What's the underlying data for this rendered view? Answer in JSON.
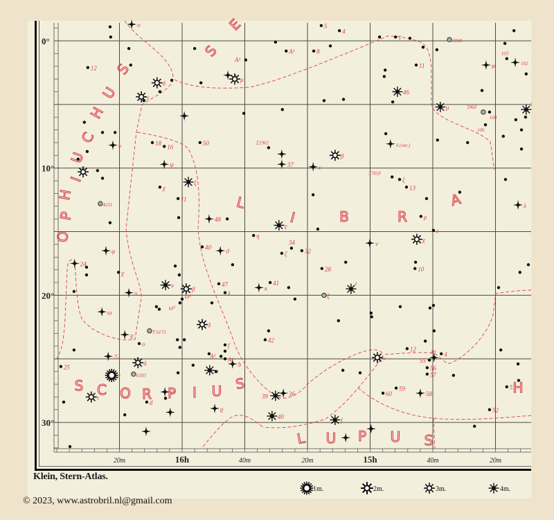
{
  "atlas_credit": "Klein, Stern-Atlas.",
  "copyright": "© 2023, www.astrobril.nl@gmail.com",
  "colors": {
    "ink": "#1a1a1a",
    "red": "#d8404c",
    "paper": "#f3efdd",
    "background": "#efe3cc",
    "grid": "#4a4a44"
  },
  "dec_labels": [
    "0°",
    "10°",
    "20°",
    "30°"
  ],
  "ra_labels": [
    "20m",
    "16h",
    "40m",
    "20m",
    "15h",
    "40m",
    "20m"
  ],
  "legend": [
    {
      "symbol": "m1",
      "label": "1m."
    },
    {
      "symbol": "m2",
      "label": "2m."
    },
    {
      "symbol": "m3",
      "label": "3m."
    },
    {
      "symbol": "m4",
      "label": "4m."
    }
  ],
  "constellations": [
    {
      "name": "OPHIUCHUS"
    },
    {
      "name": "SE"
    },
    {
      "name": "LIBRA"
    },
    {
      "name": "SCORPIUS"
    },
    {
      "name": "LUPUS"
    },
    {
      "name": "H"
    }
  ],
  "stars_note_fields": [
    "ra_minutes",
    "dec_south_deg",
    "type",
    "label"
  ],
  "stars": [
    [
      976.1,
      -1.3,
      "m5",
      "ο"
    ],
    [
      983.0,
      -1.1,
      "dot",
      ""
    ],
    [
      982.8,
      -0.3,
      "dot",
      ""
    ],
    [
      990.1,
      2.1,
      "dot",
      "12"
    ],
    [
      977.0,
      0.6,
      "dot",
      ""
    ],
    [
      976.4,
      1.9,
      "dot",
      ""
    ],
    [
      968.0,
      3.3,
      "m3",
      "δ"
    ],
    [
      963.3,
      3.1,
      "dot",
      ""
    ],
    [
      967.1,
      4.0,
      "dot",
      ""
    ],
    [
      973.0,
      4.4,
      "m3",
      "ε"
    ],
    [
      972.2,
      4.7,
      "dot",
      ""
    ],
    [
      956.0,
      0.6,
      "dot",
      ""
    ],
    [
      954.0,
      3.3,
      "dot",
      ""
    ],
    [
      945.4,
      2.7,
      "m5",
      "b"
    ],
    [
      943.2,
      3.0,
      "m3",
      "μ"
    ],
    [
      939.7,
      1.5,
      "dot",
      "A²"
    ],
    [
      930.2,
      0.1,
      "dot",
      ""
    ],
    [
      926.8,
      0.8,
      "dot",
      "A¹"
    ],
    [
      959.3,
      5.9,
      "m5",
      ""
    ],
    [
      940.3,
      5.7,
      "dot",
      ""
    ],
    [
      928.0,
      5.4,
      "dot",
      ""
    ],
    [
      991.2,
      6.4,
      "dot",
      ""
    ],
    [
      985.4,
      7.2,
      "dot",
      ""
    ],
    [
      981.4,
      7.2,
      "dot",
      ""
    ],
    [
      982.1,
      8.2,
      "m5",
      "υ"
    ],
    [
      990.3,
      8.7,
      "dot",
      ""
    ],
    [
      993.2,
      9.3,
      "dot",
      ""
    ],
    [
      991.6,
      10.3,
      "m3",
      ""
    ],
    [
      987.0,
      10.2,
      "dot",
      ""
    ],
    [
      985.4,
      10.8,
      "dot",
      ""
    ],
    [
      969.5,
      8.0,
      "dot",
      "18"
    ],
    [
      965.7,
      8.3,
      "dot",
      "16"
    ],
    [
      965.7,
      9.7,
      "m5",
      "ψ"
    ],
    [
      958.0,
      11.1,
      "m4",
      "ξ"
    ],
    [
      967.1,
      11.5,
      "dot",
      "χ"
    ],
    [
      961.3,
      12.4,
      "dot",
      "11"
    ],
    [
      954.3,
      8.0,
      "dot",
      "50"
    ],
    [
      932.4,
      8.4,
      "dot",
      "Σ1962"
    ],
    [
      928.2,
      8.9,
      "m5",
      ""
    ],
    [
      928.2,
      9.7,
      "m5",
      "37"
    ],
    [
      986.1,
      12.8,
      "neb",
      "4211"
    ],
    [
      983.0,
      14.3,
      "dot",
      ""
    ],
    [
      961.1,
      13.9,
      "dot",
      ""
    ],
    [
      951.4,
      14.0,
      "m5",
      "48"
    ],
    [
      945.6,
      14.0,
      "dot",
      ""
    ],
    [
      929.1,
      14.5,
      "m4",
      "γ"
    ],
    [
      915.6,
      -1.2,
      "dot",
      "5"
    ],
    [
      909.8,
      -0.8,
      "dot",
      "4"
    ],
    [
      897.0,
      -0.3,
      "dot",
      ""
    ],
    [
      891.9,
      -0.3,
      "dot",
      "1"
    ],
    [
      887.3,
      -0.2,
      "dot",
      ""
    ],
    [
      874.7,
      -0.1,
      "neb",
      "3968"
    ],
    [
      854.1,
      -0.8,
      "dot",
      ""
    ],
    [
      857.0,
      0.2,
      "dot",
      ""
    ],
    [
      918.0,
      0.8,
      "dot",
      "8"
    ],
    [
      912.7,
      0.4,
      "dot",
      ""
    ],
    [
      883.1,
      0.5,
      "dot",
      ""
    ],
    [
      878.7,
      0.7,
      "dot",
      ""
    ],
    [
      885.3,
      1.9,
      "dot",
      "11"
    ],
    [
      856.4,
      1.4,
      "dot",
      "103"
    ],
    [
      863.0,
      1.9,
      "m5",
      "φ"
    ],
    [
      853.7,
      1.7,
      "m5",
      "102"
    ],
    [
      850.2,
      2.6,
      "dot",
      ""
    ],
    [
      895.2,
      2.3,
      "dot",
      ""
    ],
    [
      895.5,
      2.8,
      "dot",
      ""
    ],
    [
      891.3,
      4.0,
      "m4",
      "46"
    ],
    [
      864.3,
      3.9,
      "dot",
      ""
    ],
    [
      914.7,
      4.7,
      "dot",
      ""
    ],
    [
      908.5,
      4.6,
      "dot",
      ""
    ],
    [
      892.8,
      4.8,
      "dot",
      ""
    ],
    [
      877.6,
      5.2,
      "m4",
      "μ"
    ],
    [
      863.9,
      5.6,
      "neb",
      "3960"
    ],
    [
      861.9,
      5.6,
      "dot",
      "104"
    ],
    [
      863.2,
      6.6,
      "dot",
      "106"
    ],
    [
      850.2,
      5.4,
      "m4",
      "ι"
    ],
    [
      853.5,
      6.2,
      "dot",
      ""
    ],
    [
      850.4,
      6.0,
      "dot",
      ""
    ],
    [
      851.7,
      7.0,
      "dot",
      ""
    ],
    [
      857.5,
      7.5,
      "dot",
      ""
    ],
    [
      851.7,
      8.5,
      "dot",
      ""
    ],
    [
      895.0,
      7.3,
      "dot",
      ""
    ],
    [
      893.5,
      8.1,
      "m5",
      "δ (var.)"
    ],
    [
      878.5,
      7.8,
      "dot",
      ""
    ],
    [
      868.9,
      8.0,
      "dot",
      ""
    ],
    [
      911.2,
      9.0,
      "m3",
      "β"
    ],
    [
      918.2,
      9.9,
      "m5",
      "ε"
    ],
    [
      893.0,
      10.7,
      "dot",
      "37418"
    ],
    [
      890.6,
      10.9,
      "dot",
      "ξ"
    ],
    [
      888.4,
      11.5,
      "dot",
      "13"
    ],
    [
      882.0,
      12.4,
      "dot",
      ""
    ],
    [
      871.4,
      11.9,
      "dot",
      ""
    ],
    [
      856.8,
      10.9,
      "dot",
      ""
    ],
    [
      918.2,
      12.1,
      "dot",
      ""
    ],
    [
      852.8,
      12.9,
      "m5",
      "λ"
    ],
    [
      883.8,
      13.8,
      "dot",
      "μ"
    ],
    [
      937.2,
      15.3,
      "dot",
      "η"
    ],
    [
      953.6,
      16.2,
      "dot",
      "40"
    ],
    [
      947.8,
      16.5,
      "m5",
      "ϑ"
    ],
    [
      928.2,
      16.7,
      "dot",
      "ζ"
    ],
    [
      925.1,
      16.3,
      "dot",
      "34"
    ],
    [
      921.8,
      16.5,
      "dot",
      "32"
    ],
    [
      984.3,
      16.5,
      "m5",
      "φ"
    ],
    [
      994.3,
      17.5,
      "m5",
      "24"
    ],
    [
      990.5,
      17.8,
      "dot",
      ""
    ],
    [
      990.5,
      18.4,
      "dot",
      ""
    ],
    [
      980.3,
      18.2,
      "dot",
      "χ"
    ],
    [
      962.2,
      17.7,
      "dot",
      ""
    ],
    [
      960.9,
      18.4,
      "dot",
      ""
    ],
    [
      943.9,
      17.6,
      "dot",
      ""
    ],
    [
      965.3,
      19.2,
      "m4",
      "ν"
    ],
    [
      958.7,
      19.5,
      "m3",
      "β"
    ],
    [
      948.3,
      19.1,
      "dot",
      "47"
    ],
    [
      946.3,
      19.8,
      "dot",
      "λ"
    ],
    [
      935.5,
      19.4,
      "m5",
      "κ"
    ],
    [
      931.9,
      19.0,
      "dot",
      "41"
    ],
    [
      926.0,
      19.4,
      "dot",
      ""
    ],
    [
      924.0,
      20.3,
      "dot",
      ""
    ],
    [
      994.5,
      19.7,
      "dot",
      ""
    ],
    [
      977.0,
      19.8,
      "m5",
      "υ"
    ],
    [
      960.0,
      20.3,
      "dot",
      "ω¹"
    ],
    [
      960.7,
      20.6,
      "dot",
      "ω²"
    ],
    [
      968.2,
      20.9,
      "dot",
      ""
    ],
    [
      967.3,
      21.1,
      "dot",
      ""
    ],
    [
      950.5,
      20.6,
      "dot",
      ""
    ],
    [
      985.6,
      21.3,
      "m5",
      "ω"
    ],
    [
      953.6,
      22.3,
      "m3",
      "δ"
    ],
    [
      970.4,
      22.8,
      "neb",
      "T 6173"
    ],
    [
      978.3,
      23.1,
      "m5",
      "ϱ"
    ],
    [
      973.7,
      23.8,
      "dot",
      "ο"
    ],
    [
      961.5,
      23.5,
      "dot",
      ""
    ],
    [
      959.3,
      23.5,
      "dot",
      ""
    ],
    [
      960.7,
      24.1,
      "dot",
      ""
    ],
    [
      946.3,
      23.9,
      "dot",
      "f"
    ],
    [
      946.3,
      24.4,
      "dot",
      ""
    ],
    [
      951.4,
      24.6,
      "dot",
      ""
    ],
    [
      947.6,
      24.8,
      "dot",
      "A²"
    ],
    [
      946.3,
      25.0,
      "dot",
      "A¹"
    ],
    [
      943.9,
      25.4,
      "m5",
      "b"
    ],
    [
      932.4,
      22.8,
      "dot",
      ""
    ],
    [
      933.5,
      23.5,
      "dot",
      "42"
    ],
    [
      994.5,
      24.3,
      "dot",
      ""
    ],
    [
      983.6,
      24.8,
      "m5",
      "22"
    ],
    [
      974.1,
      25.3,
      "m3",
      "δ"
    ],
    [
      975.5,
      26.2,
      "neb",
      "6183"
    ],
    [
      982.5,
      26.3,
      "m1",
      "α"
    ],
    [
      998.7,
      25.6,
      "dot",
      "25"
    ],
    [
      956.5,
      25.5,
      "dot",
      ""
    ],
    [
      951.2,
      25.9,
      "m4",
      "π"
    ],
    [
      949.2,
      26.0,
      "dot",
      ""
    ],
    [
      961.3,
      26.1,
      "dot",
      ""
    ],
    [
      989.0,
      28.0,
      "m3",
      "τ"
    ],
    [
      997.8,
      28.4,
      "dot",
      ""
    ],
    [
      965.5,
      27.6,
      "m5",
      "c²"
    ],
    [
      965.3,
      28.1,
      "dot",
      ""
    ],
    [
      971.3,
      28.4,
      "dot",
      "d"
    ],
    [
      978.3,
      29.4,
      "dot",
      ""
    ],
    [
      963.8,
      29.2,
      "m5",
      ""
    ],
    [
      949.6,
      28.9,
      "m5",
      "ϱ"
    ],
    [
      930.2,
      27.9,
      "m4",
      "39"
    ],
    [
      927.7,
      27.7,
      "m5",
      "36"
    ],
    [
      931.3,
      29.5,
      "m4",
      "40"
    ],
    [
      971.5,
      30.7,
      "m5",
      ""
    ],
    [
      995.8,
      31.9,
      "dot",
      ""
    ],
    [
      916.7,
      14.8,
      "dot",
      ""
    ],
    [
      879.8,
      14.9,
      "dot",
      "ε"
    ],
    [
      900.1,
      15.9,
      "m5",
      "ν"
    ],
    [
      885.1,
      15.6,
      "m3",
      "χ"
    ],
    [
      907.8,
      17.4,
      "dot",
      ""
    ],
    [
      915.4,
      17.9,
      "dot",
      "28"
    ],
    [
      885.5,
      17.4,
      "dot",
      ""
    ],
    [
      885.7,
      17.9,
      "dot",
      "10"
    ],
    [
      849.5,
      17.6,
      "dot",
      ""
    ],
    [
      852.2,
      18.2,
      "dot",
      ""
    ],
    [
      906.1,
      19.5,
      "m4",
      "ι"
    ],
    [
      914.7,
      20.0,
      "neb",
      "ξ"
    ],
    [
      859.0,
      19.4,
      "dot",
      ""
    ],
    [
      890.4,
      20.9,
      "dot",
      ""
    ],
    [
      880.9,
      21.0,
      "dot",
      ""
    ],
    [
      879.8,
      20.8,
      "dot",
      ""
    ],
    [
      899.7,
      21.4,
      "dot",
      ""
    ],
    [
      899.5,
      21.7,
      "dot",
      ""
    ],
    [
      910.1,
      22.0,
      "dot",
      ""
    ],
    [
      879.6,
      22.8,
      "dot",
      ""
    ],
    [
      882.4,
      23.6,
      "dot",
      ""
    ],
    [
      888.2,
      24.2,
      "dot",
      "12"
    ],
    [
      877.3,
      24.6,
      "dot",
      "4"
    ],
    [
      897.7,
      24.9,
      "m3",
      "ν"
    ],
    [
      879.6,
      24.9,
      "m5",
      "m"
    ],
    [
      881.1,
      25.1,
      "dot",
      "55"
    ],
    [
      881.8,
      25.7,
      "dot",
      "56"
    ],
    [
      881.8,
      26.2,
      "dot",
      "57"
    ],
    [
      873.4,
      26.3,
      "dot",
      ""
    ],
    [
      858.3,
      24.3,
      "dot",
      ""
    ],
    [
      852.8,
      25.4,
      "dot",
      ""
    ],
    [
      852.6,
      26.7,
      "dot",
      ""
    ],
    [
      856.4,
      27.2,
      "dot",
      "51"
    ],
    [
      908.7,
      25.9,
      "dot",
      ""
    ],
    [
      903.2,
      26.1,
      "dot",
      ""
    ],
    [
      891.7,
      27.3,
      "dot",
      "59"
    ],
    [
      895.9,
      27.7,
      "dot",
      "60"
    ],
    [
      884.0,
      27.7,
      "m5",
      "58"
    ],
    [
      861.9,
      29.0,
      "dot",
      "52"
    ],
    [
      866.7,
      30.3,
      "dot",
      ""
    ],
    [
      911.2,
      29.8,
      "m4",
      "f"
    ],
    [
      899.7,
      30.5,
      "m5",
      ""
    ],
    [
      907.8,
      31.2,
      "m5",
      ""
    ]
  ]
}
